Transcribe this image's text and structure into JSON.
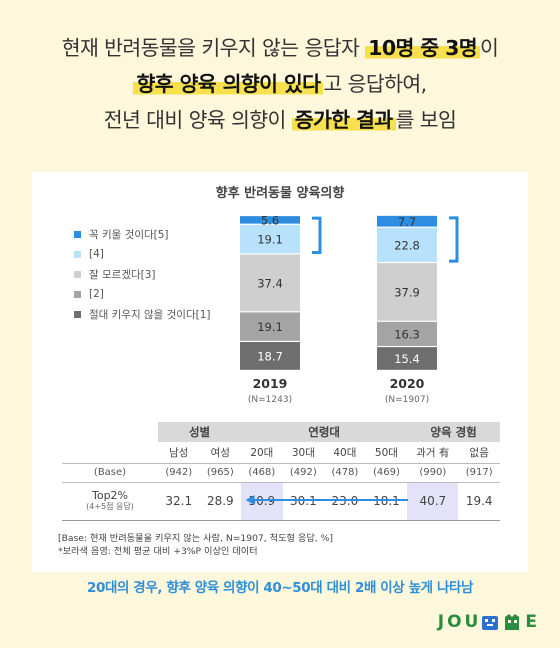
{
  "headline": {
    "line1_pre": "현재 반려동물을 키우지 않는 응답자 ",
    "line1_hl": "10명 중 3명",
    "line1_post": "이",
    "line2_hl": "향후 양육 의향이 있다",
    "line2_post": "고 응답하여,",
    "line3_pre": "전년 대비 양육 의향이 ",
    "line3_hl": "증가한 결과",
    "line3_post": "를 보임"
  },
  "chart_data": {
    "type": "bar",
    "stacked": true,
    "title": "향후 반려동물 양육의향",
    "categories": [
      "2019",
      "2020"
    ],
    "category_notes": [
      "(N=1243)",
      "(N=1907)"
    ],
    "series": [
      {
        "name": "절대 키우지 않을 것이다[1]",
        "values": [
          18.7,
          15.4
        ],
        "color": "#6e6e6e"
      },
      {
        "name": "[2]",
        "values": [
          19.1,
          16.3
        ],
        "color": "#a4a4a4"
      },
      {
        "name": "잘 모르겠다[3]",
        "values": [
          37.4,
          37.9
        ],
        "color": "#cfcfcf"
      },
      {
        "name": "[4]",
        "values": [
          19.1,
          22.8
        ],
        "color": "#b8e2fb"
      },
      {
        "name": "꼭 키울 것이다[5]",
        "values": [
          5.6,
          7.7
        ],
        "color": "#2d8de0"
      }
    ],
    "legend_order": [
      "꼭 키울 것이다[5]",
      "[4]",
      "잘 모르겠다[3]",
      "[2]",
      "절대 키우지 않을 것이다[1]"
    ],
    "legend_position": "left",
    "ylim": [
      0,
      100
    ],
    "grid": false
  },
  "table": {
    "groups": [
      "성별",
      "연령대",
      "양육 경험"
    ],
    "subheaders": [
      "남성",
      "여성",
      "20대",
      "30대",
      "40대",
      "50대",
      "과거 有",
      "없음"
    ],
    "base_label": "(Base)",
    "base": [
      "(942)",
      "(965)",
      "(468)",
      "(492)",
      "(478)",
      "(469)",
      "(990)",
      "(917)"
    ],
    "row_label": "Top2%",
    "row_sublabel": "(4+5점 응답)",
    "top2": [
      "32.1",
      "28.9",
      "50.9",
      "30.1",
      "23.0",
      "18.1",
      "40.7",
      "19.4"
    ]
  },
  "footnote": {
    "line1": "[Base: 현재 반려동물을 키우지 않는 사람, N=1907, 척도형 응답, %]",
    "line2": "*보라색 음영: 전체 평균 대비 +3%P 이상인 데이터"
  },
  "summary": "20대의 경우, 향후 양육 의향이 40~50대 대비 2배 이상 높게 나타남",
  "logo": {
    "text_left": "JOU",
    "text_right": "E",
    "mark_colors": [
      "#2d6fcf",
      "#2a8c3e"
    ]
  }
}
